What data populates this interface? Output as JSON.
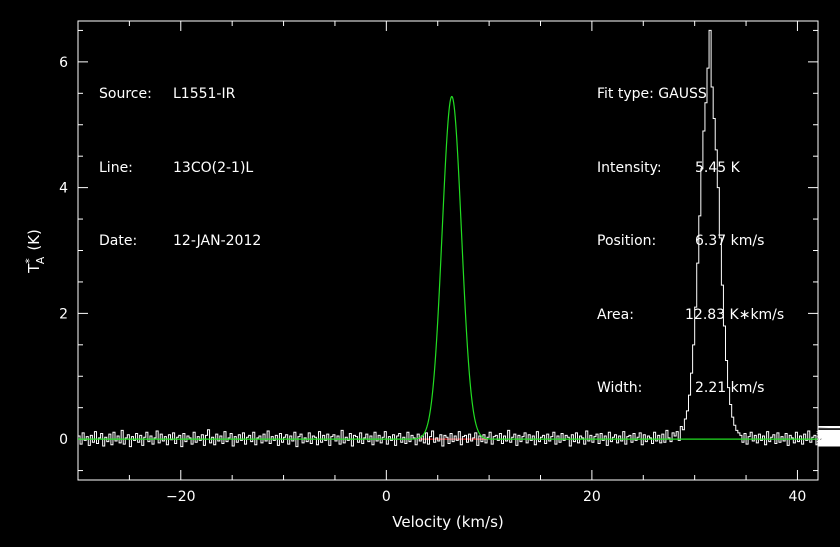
{
  "chart_data": {
    "type": "line",
    "title": "",
    "xlabel": "Velocity (km/s)",
    "ylabel_main": "T",
    "ylabel_sup": "*",
    "ylabel_sub": "A",
    "ylabel_unit": "(K)",
    "xlim": [
      -30,
      42
    ],
    "ylim": [
      -0.65,
      6.65
    ],
    "x_ticks": [
      -20,
      0,
      20,
      40
    ],
    "x_tick_labels": [
      "−20",
      "0",
      "20",
      "40"
    ],
    "y_ticks": [
      0,
      2,
      4,
      6
    ],
    "y_tick_labels": [
      "0",
      "2",
      "4",
      "6"
    ],
    "grid": false,
    "legend": "none",
    "series": [
      {
        "role": "spectrum",
        "style": "step",
        "color": "#ffffff",
        "x_start": -30,
        "x_step": 0.2,
        "values": [
          0.05,
          -0.08,
          0.1,
          -0.02,
          0.04,
          -0.1,
          0.06,
          -0.05,
          0.12,
          -0.07,
          0.02,
          0.09,
          -0.11,
          0.03,
          -0.04,
          0.08,
          -0.09,
          0.11,
          -0.03,
          0.05,
          -0.06,
          0.14,
          -0.08,
          0.02,
          0.07,
          -0.12,
          0.04,
          -0.02,
          0.09,
          -0.05,
          0.06,
          -0.1,
          0.03,
          0.11,
          -0.04,
          0.05,
          -0.08,
          0.02,
          0.13,
          -0.06,
          0.08,
          -0.03,
          0.04,
          -0.09,
          0.07,
          -0.01,
          0.1,
          -0.07,
          0.03,
          0.06,
          -0.12,
          0.09,
          -0.04,
          0.05,
          0.02,
          -0.08,
          0.11,
          -0.05,
          0.04,
          -0.02,
          0.07,
          -0.1,
          0.06,
          0.15,
          -0.06,
          0.03,
          -0.09,
          0.08,
          -0.03,
          0.05,
          -0.07,
          0.12,
          -0.04,
          0.02,
          0.09,
          -0.11,
          0.04,
          -0.05,
          0.07,
          -0.02,
          0.1,
          -0.08,
          0.03,
          0.06,
          -0.04,
          0.11,
          -0.09,
          0.02,
          0.05,
          -0.06,
          0.08,
          -0.03,
          0.13,
          -0.07,
          0.04,
          -0.02,
          0.06,
          -0.1,
          0.09,
          -0.05,
          0.03,
          0.07,
          -0.08,
          0.05,
          -0.03,
          0.11,
          -0.12,
          0.04,
          0.08,
          -0.06,
          0.02,
          -0.04,
          0.1,
          -0.07,
          0.05,
          0.03,
          -0.09,
          0.12,
          -0.05,
          0.06,
          -0.02,
          0.08,
          -0.1,
          0.04,
          0.07,
          -0.03,
          0.05,
          -0.08,
          0.14,
          -0.06,
          0.03,
          -0.02,
          0.09,
          -0.11,
          0.06,
          0.04,
          -0.05,
          0.1,
          -0.07,
          0.02,
          0.08,
          -0.04,
          0.05,
          -0.09,
          0.11,
          -0.03,
          0.06,
          -0.06,
          0.03,
          0.12,
          -0.08,
          0.04,
          -0.02,
          0.07,
          -0.1,
          0.05,
          0.09,
          -0.05,
          0.03,
          -0.07,
          0.11,
          -0.04,
          0.06,
          0.02,
          -0.09,
          0.08,
          -0.03,
          0.05,
          -0.06,
          0.1,
          -0.08,
          0.04,
          0.13,
          -0.05,
          0.02,
          -0.03,
          0.07,
          -0.11,
          0.06,
          0.03,
          -0.07,
          0.09,
          -0.04,
          0.05,
          -0.02,
          0.12,
          -0.09,
          0.04,
          0.06,
          -0.05,
          0.08,
          -0.03,
          0.02,
          0.1,
          -0.1,
          0.05,
          -0.04,
          0.07,
          -0.06,
          0.03,
          0.11,
          -0.08,
          0.04,
          0.06,
          -0.02,
          0.09,
          -0.07,
          0.05,
          -0.03,
          0.14,
          -0.05,
          0.03,
          0.08,
          -0.1,
          0.06,
          -0.04,
          0.04,
          0.1,
          -0.06,
          0.07,
          -0.02,
          0.05,
          -0.09,
          0.12,
          -0.04,
          0.03,
          0.06,
          -0.07,
          0.08,
          -0.03,
          0.04,
          0.11,
          -0.08,
          0.05,
          -0.05,
          0.09,
          -0.02,
          0.06,
          0.03,
          -0.11,
          0.07,
          -0.04,
          0.1,
          -0.06,
          0.05,
          0.02,
          -0.08,
          0.13,
          -0.03,
          0.06,
          -0.05,
          0.04,
          0.08,
          -0.07,
          0.09,
          -0.02,
          0.05,
          -0.1,
          0.11,
          -0.04,
          0.03,
          0.07,
          -0.06,
          0.05,
          -0.03,
          0.12,
          -0.08,
          0.04,
          0.06,
          -0.05,
          0.09,
          -0.02,
          0.03,
          0.1,
          -0.09,
          0.07,
          -0.04,
          0.05,
          0.02,
          -0.07,
          0.11,
          -0.03,
          0.06,
          -0.06,
          0.08,
          -0.05,
          0.14,
          0.02,
          -0.04,
          0.1,
          0.05,
          0.12,
          -0.02,
          0.2,
          0.15,
          0.32,
          0.45,
          0.7,
          1.05,
          1.5,
          2.1,
          2.8,
          3.55,
          4.3,
          4.9,
          5.35,
          5.9,
          6.5,
          5.6,
          5.1,
          4.6,
          4.0,
          3.2,
          2.45,
          1.8,
          1.25,
          0.82,
          0.55,
          0.35,
          0.22,
          0.14,
          0.1,
          0.06,
          -0.05,
          0.09,
          -0.08,
          0.04,
          0.11,
          -0.03,
          0.06,
          -0.06,
          0.08,
          -0.02,
          0.05,
          -0.09,
          0.12,
          -0.04,
          0.03,
          0.07,
          -0.07,
          0.1,
          -0.05,
          0.04,
          -0.03,
          0.09,
          -0.1,
          0.06,
          0.02,
          -0.06,
          0.11,
          -0.04,
          0.05,
          -0.08,
          0.08,
          -0.02,
          0.13,
          -0.05,
          0.03,
          0.06,
          -0.09,
          0.07,
          -0.03,
          0.04,
          0.1,
          -0.07,
          0.05,
          -0.04,
          0.09,
          -0.06,
          0.02,
          0.12,
          -0.08,
          0.06,
          -0.02,
          0.04,
          -0.11,
          0.1,
          -0.05,
          0.07,
          0.03,
          -0.06,
          0.08,
          -0.04,
          0.11,
          -0.07,
          0.05,
          0.02,
          -0.09,
          0.09,
          -0.03,
          0.06,
          -0.05,
          0.14,
          -0.04,
          0.03,
          0.07,
          -0.1,
          0.05,
          -0.06,
          0.08,
          -0.02,
          0.1,
          -0.08,
          0.04,
          0.06,
          -0.03,
          0.12,
          -0.07,
          0.05,
          -0.05,
          0.09,
          0.02,
          -0.09,
          0.07,
          -0.04,
          0.11,
          -0.06,
          0.03,
          0.08,
          -0.02,
          0.05,
          -0.1,
          0.1,
          -0.05,
          0.06,
          0.04,
          -0.07,
          0.13,
          -0.03,
          0.05,
          -0.08,
          0.07,
          -0.04,
          0.09,
          0.02,
          -0.06,
          0.11,
          -0.05,
          0.04,
          -0.09,
          0.08,
          -0.02,
          0.06,
          0.1,
          -0.07,
          0.05,
          -0.03,
          0.12,
          -0.06,
          0.03,
          0.07,
          -0.11,
          0.09,
          -0.04,
          0.05,
          -0.02,
          0.08,
          -0.08,
          0.14,
          -0.05,
          0.04,
          0.06,
          -0.03,
          0.1,
          -0.07,
          0.05,
          -0.06,
          0.09,
          0.02,
          -0.1,
          0.07,
          -0.04,
          0.11,
          -0.05,
          0.03,
          0.08,
          -0.08,
          0.06,
          -0.02,
          0.12,
          -0.06,
          0.04,
          0.05,
          -0.09,
          0.1,
          -0.03,
          0.07,
          -0.05,
          0.04,
          0.13,
          -0.07,
          0.06,
          -0.04,
          0.09,
          -0.02,
          0.05,
          -0.1,
          0.11,
          -0.06,
          0.03,
          0.08,
          -0.03,
          0.06,
          -0.08,
          0.1,
          -0.05,
          0.04,
          0.07,
          -0.04,
          0.12,
          -0.09,
          0.05,
          -0.02,
          0.09,
          -0.06,
          0.03,
          0.11,
          -0.07,
          0.06,
          -0.03,
          0.08,
          -0.05,
          0.14,
          -0.04,
          0.05,
          0.02,
          -0.1,
          0.07,
          -0.06,
          0.1,
          -0.03,
          0.06,
          0.04,
          -0.08,
          0.09,
          -0.05,
          0.12,
          -0.02,
          0.05,
          -0.07,
          0.08,
          -0.04,
          0.11,
          0.03,
          -0.09,
          0.07,
          -0.05,
          0.06,
          -0.02,
          0.13,
          -0.06,
          0.04,
          0.08,
          -0.08,
          0.1,
          -0.03,
          0.05,
          -0.05,
          0.09,
          0.02,
          -0.11,
          0.12,
          -0.04,
          0.06,
          -0.06,
          0.08,
          -0.02,
          0.05,
          0.1,
          -0.07,
          0.07,
          -0.03,
          0.04,
          -0.09,
          0.11,
          -0.05,
          0.14,
          -0.04,
          0.06,
          0.03,
          -0.08,
          0.09,
          -0.02,
          0.05,
          -0.06,
          0.12,
          -0.05,
          0.07,
          -0.03,
          0.2,
          0.04,
          -0.07,
          0.1,
          -0.04,
          0.18
        ]
      },
      {
        "role": "gaussian-fit",
        "style": "smooth",
        "color": "#22dd22",
        "amplitude": 5.45,
        "center": 6.37,
        "fwhm": 2.21
      },
      {
        "role": "baseline",
        "style": "segment",
        "color": "#dd2222",
        "x_range": [
          3.2,
          9.8
        ],
        "value": 0
      }
    ]
  },
  "info_left": [
    {
      "label": "Source:",
      "value": "L1551-IR"
    },
    {
      "label": "Line:",
      "value": "13CO(2-1)L"
    },
    {
      "label": "Date:",
      "value": "12-JAN-2012"
    }
  ],
  "info_right": {
    "fit_type": "Fit type: GAUSS",
    "rows": [
      {
        "label": "Intensity:",
        "value": "5.45 K"
      },
      {
        "label": "Position:",
        "value": "6.37 km/s"
      },
      {
        "label": "Area:",
        "value": "12.83 K∗km/s"
      },
      {
        "label": "Width:",
        "value": "2.21 km/s"
      }
    ]
  }
}
